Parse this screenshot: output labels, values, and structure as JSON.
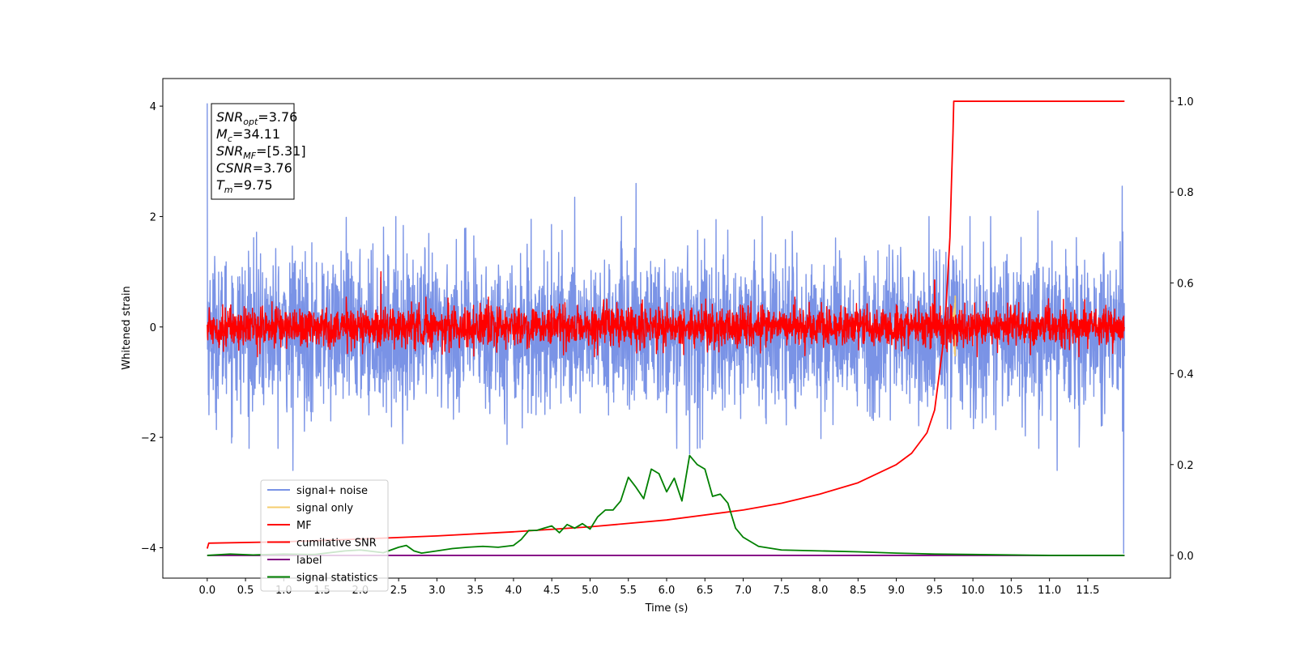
{
  "chart_data": {
    "type": "line",
    "title": "",
    "xlabel": "Time (s)",
    "ylabel": "Whitened strain",
    "ylabel_right": "",
    "xlim": [
      -0.58,
      12.58
    ],
    "ylim": [
      -4.55,
      4.5
    ],
    "ylim_right": [
      -0.05,
      1.05
    ],
    "x_ticks": [
      0.0,
      0.5,
      1.0,
      1.5,
      2.0,
      2.5,
      3.0,
      3.5,
      4.0,
      4.5,
      5.0,
      5.5,
      6.0,
      6.5,
      7.0,
      7.5,
      8.0,
      8.5,
      9.0,
      9.5,
      10.0,
      10.5,
      11.0,
      11.5
    ],
    "x_tick_labels": [
      "0.0",
      "0.5",
      "1.0",
      "1.5",
      "2.0",
      "2.5",
      "3.0",
      "3.5",
      "4.0",
      "4.5",
      "5.0",
      "5.5",
      "6.0",
      "6.5",
      "7.0",
      "7.5",
      "8.0",
      "8.5",
      "9.0",
      "9.5",
      "10.0",
      "10.5",
      "11.0",
      "11.5"
    ],
    "y_ticks": [
      4,
      2,
      0,
      -2,
      -4
    ],
    "y_tick_labels": [
      "4",
      "2",
      "0",
      "−2",
      "−4"
    ],
    "y_right_ticks": [
      1.0,
      0.8,
      0.6,
      0.4,
      0.2,
      0.0
    ],
    "y_right_tick_labels": [
      "1.0",
      "0.8",
      "0.6",
      "0.4",
      "0.2",
      "0.0"
    ],
    "grid": false,
    "legend_position": "lower-left",
    "annotation": {
      "lines": [
        {
          "base": "SNR",
          "sub": "opt",
          "rest": "=3.76"
        },
        {
          "base": "M",
          "sub": "c",
          "rest": "=34.11"
        },
        {
          "base": "SNR",
          "sub": "MF",
          "rest": "=[5.31]"
        },
        {
          "base": "CSNR",
          "sub": "",
          "rest": "=3.76"
        },
        {
          "base": "T",
          "sub": "m",
          "rest": "=9.75"
        }
      ]
    },
    "series": [
      {
        "name": "signal+ noise",
        "color": "#7a93e6",
        "axis": "left",
        "kind": "noise",
        "x_range": [
          0.0,
          11.98
        ],
        "approx_mean": -0.1,
        "approx_std": 0.7,
        "extremes": [
          {
            "x": 0.0,
            "y": 4.05
          },
          {
            "x": 1.12,
            "y": -2.6
          },
          {
            "x": 4.8,
            "y": 2.35
          },
          {
            "x": 5.6,
            "y": 2.6
          },
          {
            "x": 6.3,
            "y": -2.3
          },
          {
            "x": 10.85,
            "y": 2.1
          },
          {
            "x": 11.1,
            "y": -2.6
          },
          {
            "x": 11.95,
            "y": 2.55
          },
          {
            "x": 11.97,
            "y": -4.1
          }
        ]
      },
      {
        "name": "signal only",
        "color": "#f5cc6e",
        "axis": "left",
        "kind": "chirp",
        "x_range": [
          9.7,
          9.77
        ],
        "peak": 0.6
      },
      {
        "name": "MF",
        "color": "#ff0000",
        "axis": "left",
        "kind": "noise",
        "x_range": [
          0.0,
          11.98
        ],
        "approx_mean": 0.0,
        "approx_std": 0.18,
        "extremes": [
          {
            "x": 2.27,
            "y": 1.0
          },
          {
            "x": 9.5,
            "y": 0.85
          }
        ]
      },
      {
        "name": "cumilative SNR",
        "color": "#ff0000",
        "axis": "right",
        "kind": "curve",
        "x": [
          0.0,
          0.02,
          1.0,
          2.0,
          3.0,
          4.0,
          5.0,
          6.0,
          7.0,
          7.5,
          8.0,
          8.5,
          9.0,
          9.2,
          9.4,
          9.5,
          9.6,
          9.65,
          9.7,
          9.72,
          9.74,
          9.75,
          11.98
        ],
        "y": [
          0.015,
          0.027,
          0.03,
          0.036,
          0.043,
          0.052,
          0.063,
          0.078,
          0.1,
          0.115,
          0.135,
          0.16,
          0.2,
          0.225,
          0.27,
          0.32,
          0.45,
          0.55,
          0.7,
          0.82,
          0.93,
          1.0,
          1.0
        ]
      },
      {
        "name": "label",
        "color": "#800080",
        "axis": "right",
        "kind": "curve",
        "x": [
          0.0,
          11.98
        ],
        "y": [
          0.0,
          0.0
        ]
      },
      {
        "name": "signal statistics",
        "color": "#008000",
        "axis": "right",
        "kind": "curve",
        "x": [
          0.0,
          0.3,
          0.6,
          1.0,
          1.4,
          1.8,
          2.0,
          2.2,
          2.3,
          2.4,
          2.5,
          2.6,
          2.7,
          2.8,
          3.0,
          3.2,
          3.4,
          3.6,
          3.8,
          4.0,
          4.1,
          4.2,
          4.3,
          4.4,
          4.5,
          4.6,
          4.7,
          4.8,
          4.9,
          5.0,
          5.1,
          5.2,
          5.3,
          5.4,
          5.5,
          5.6,
          5.7,
          5.8,
          5.9,
          6.0,
          6.1,
          6.2,
          6.3,
          6.4,
          6.5,
          6.6,
          6.7,
          6.8,
          6.9,
          7.0,
          7.2,
          7.5,
          8.0,
          8.5,
          9.0,
          9.5,
          10.0,
          11.0,
          11.98
        ],
        "y": [
          0.0,
          0.003,
          0.001,
          0.003,
          0.002,
          0.01,
          0.012,
          0.008,
          0.006,
          0.012,
          0.018,
          0.022,
          0.01,
          0.005,
          0.01,
          0.015,
          0.018,
          0.02,
          0.018,
          0.022,
          0.035,
          0.055,
          0.055,
          0.06,
          0.065,
          0.05,
          0.068,
          0.06,
          0.07,
          0.058,
          0.085,
          0.1,
          0.1,
          0.12,
          0.172,
          0.15,
          0.125,
          0.19,
          0.18,
          0.14,
          0.17,
          0.12,
          0.22,
          0.2,
          0.19,
          0.13,
          0.135,
          0.115,
          0.06,
          0.04,
          0.02,
          0.012,
          0.01,
          0.008,
          0.005,
          0.003,
          0.002,
          0.0,
          0.0
        ]
      }
    ]
  }
}
